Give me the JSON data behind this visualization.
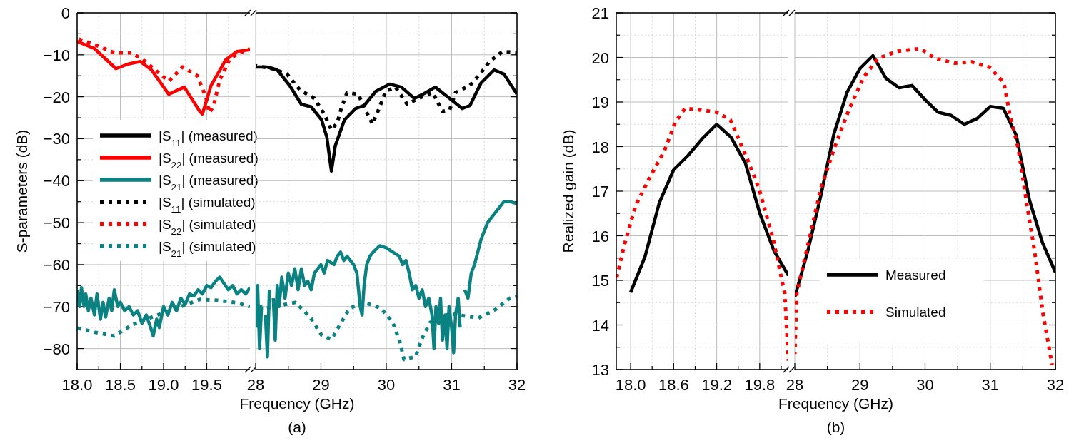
{
  "chart_data": [
    {
      "type": "line",
      "ylabel": "S-parameters (dB)",
      "xlim": [
        18,
        20
      ],
      "ylim": [
        -85,
        0
      ],
      "xticks": [
        {
          "value": 18,
          "label": "18.0"
        },
        {
          "value": 18.25,
          "label": null
        },
        {
          "value": 18.5,
          "label": "18.5"
        },
        {
          "value": 18.75,
          "label": null
        },
        {
          "value": 19,
          "label": "19.0"
        },
        {
          "value": 19.25,
          "label": null
        },
        {
          "value": 19.5,
          "label": "19.5"
        },
        {
          "value": 19.75,
          "label": null
        }
      ],
      "yticks": [
        0,
        {
          "value": -5,
          "label": null
        },
        -10,
        {
          "value": -15,
          "label": null
        },
        -20,
        {
          "value": -25,
          "label": null
        },
        -30,
        {
          "value": -35,
          "label": null
        },
        -40,
        {
          "value": -45,
          "label": null
        },
        -50,
        {
          "value": -55,
          "label": null
        },
        -60,
        {
          "value": -65,
          "label": null
        },
        -70,
        {
          "value": -75,
          "label": null
        },
        -80
      ],
      "grid": true,
      "legend": "center",
      "series": [
        {
          "name": "|S$_{11}$| (measured)",
          "color": "#000000",
          "line_style": "solid"
        },
        {
          "name": "|S$_{22}$| (measured)",
          "color": "#ff0000",
          "line_style": "solid",
          "x": [
            18,
            18.2,
            18.45,
            18.59,
            18.73,
            18.86,
            19.06,
            19.24,
            19.42,
            19.45,
            19.55,
            19.72,
            19.85,
            20
          ],
          "values": [
            -6.8,
            -8.5,
            -13.3,
            -12.2,
            -11.6,
            -13.6,
            -19.4,
            -17.7,
            -23.5,
            -24.1,
            -17.3,
            -11.2,
            -9.2,
            -8.8
          ]
        },
        {
          "name": "|S$_{21}$| (measured)",
          "color": "#0a8282",
          "line_style": "solid",
          "x": [
            18,
            18.03,
            18.05,
            18.08,
            18.1,
            18.13,
            18.16,
            18.2,
            18.23,
            18.27,
            18.3,
            18.33,
            18.37,
            18.4,
            18.43,
            18.47,
            18.5,
            18.55,
            18.6,
            18.65,
            18.7,
            18.75,
            18.8,
            18.85,
            18.88,
            18.92,
            18.95,
            19,
            19.05,
            19.1,
            19.15,
            19.2,
            19.25,
            19.3,
            19.35,
            19.4,
            19.45,
            19.5,
            19.55,
            19.6,
            19.65,
            19.7,
            19.75,
            19.8,
            19.85,
            19.9,
            19.95,
            20
          ],
          "values": [
            -66,
            -70,
            -65.5,
            -70,
            -67,
            -71,
            -68,
            -72,
            -67,
            -73,
            -69,
            -72.5,
            -68,
            -71,
            -66,
            -70,
            -69,
            -71,
            -70,
            -72,
            -71,
            -74,
            -72,
            -75,
            -77,
            -73,
            -75,
            -70,
            -72,
            -69,
            -71,
            -68,
            -69.5,
            -67,
            -67.5,
            -66,
            -67,
            -65,
            -65.5,
            -64,
            -63,
            -64.5,
            -66,
            -65,
            -67,
            -66,
            -67,
            -65.5
          ]
        },
        {
          "name": "|S$_{11}$| (simulated)",
          "color": "#000000",
          "line_style": "dotted"
        },
        {
          "name": "|S$_{22}$| (simulated)",
          "color": "#ff0000",
          "line_style": "dotted",
          "x": [
            18,
            18.23,
            18.43,
            18.63,
            18.79,
            18.96,
            19.06,
            19.22,
            19.39,
            19.49,
            19.53,
            19.58,
            19.65,
            19.77,
            19.88,
            20
          ],
          "values": [
            -6.1,
            -7.8,
            -9.5,
            -9.5,
            -11.6,
            -14.6,
            -16.3,
            -12.9,
            -15,
            -20.1,
            -23.8,
            -22.1,
            -16,
            -10.9,
            -9.5,
            -8.6
          ]
        },
        {
          "name": "|S$_{21}$| (simulated)",
          "color": "#0a8282",
          "line_style": "dotted",
          "x": [
            18,
            18.2,
            18.43,
            18.63,
            18.8,
            19,
            19.2,
            19.42,
            19.62,
            19.85,
            20
          ],
          "values": [
            -75.1,
            -76.1,
            -77,
            -74.4,
            -73,
            -71.5,
            -70,
            -68.3,
            -68.5,
            -69.1,
            -70
          ]
        }
      ]
    },
    {
      "type": "line",
      "xlabel": "Frequency (GHz)",
      "annotations": [
        "(a)"
      ],
      "xlim": [
        28,
        32
      ],
      "ylim": [
        -85,
        0
      ],
      "tick_labels": "x",
      "xticks": [
        28,
        {
          "value": 28.5,
          "label": null
        },
        29,
        {
          "value": 29.5,
          "label": null
        },
        30,
        {
          "value": 30.5,
          "label": null
        },
        31,
        {
          "value": 31.5,
          "label": null
        },
        32
      ],
      "yticks": [
        0,
        {
          "value": -5,
          "label": null
        },
        -10,
        {
          "value": -15,
          "label": null
        },
        -20,
        {
          "value": -25,
          "label": null
        },
        -30,
        {
          "value": -35,
          "label": null
        },
        -40,
        {
          "value": -45,
          "label": null
        },
        -50,
        {
          "value": -55,
          "label": null
        },
        -60,
        {
          "value": -65,
          "label": null
        },
        -70,
        {
          "value": -75,
          "label": null
        },
        -80
      ],
      "grid": true,
      "series": [
        {
          "color": "#000000",
          "line_style": "solid",
          "x": [
            28,
            28.17,
            28.33,
            28.52,
            28.7,
            28.85,
            29.01,
            29.09,
            29.16,
            29.22,
            29.36,
            29.53,
            29.66,
            29.84,
            30.05,
            30.23,
            30.43,
            30.56,
            30.75,
            30.97,
            31.16,
            31.28,
            31.45,
            31.65,
            31.8,
            32
          ],
          "values": [
            -12.9,
            -12.9,
            -13.6,
            -17.3,
            -21.8,
            -22.4,
            -25.5,
            -29.6,
            -37.7,
            -31.6,
            -25.5,
            -22.8,
            -22.1,
            -18.7,
            -17,
            -17.7,
            -20.4,
            -19.4,
            -17.7,
            -20.4,
            -22.8,
            -22.1,
            -16.7,
            -13.6,
            -14.6,
            -19.4
          ]
        },
        {
          "color": "#0a8282",
          "line_style": "solid",
          "x": [
            28,
            28.03,
            28.06,
            28.09,
            28.12,
            28.15,
            28.18,
            28.21,
            28.24,
            28.27,
            28.3,
            28.33,
            28.36,
            28.4,
            28.45,
            28.5,
            28.55,
            28.6,
            28.65,
            28.7,
            28.75,
            28.8,
            28.85,
            28.9,
            29,
            29.05,
            29.1,
            29.2,
            29.25,
            29.3,
            29.35,
            29.4,
            29.45,
            29.5,
            29.55,
            29.6,
            29.63,
            29.66,
            29.7,
            29.75,
            29.8,
            29.9,
            30,
            30.1,
            30.2,
            30.25,
            30.3,
            30.35,
            30.4,
            30.45,
            30.5,
            30.55,
            30.6,
            30.65,
            30.7,
            30.73,
            30.76,
            30.8,
            30.83,
            30.86,
            30.9,
            30.93,
            30.96,
            31,
            31.03,
            31.06,
            31.1,
            31.13,
            31.16,
            31.2,
            31.25,
            31.3,
            31.35,
            31.4,
            31.45,
            31.5,
            31.55,
            31.6,
            31.7,
            31.8,
            31.9,
            32
          ],
          "values": [
            -75,
            -65,
            -80,
            -70,
            null,
            -72,
            -82,
            -66,
            null,
            -68,
            -78,
            -65,
            -70,
            -63,
            -68,
            -62,
            -65,
            -61,
            -66,
            -61,
            -65,
            -64,
            -66,
            -62,
            -60,
            -62,
            -59,
            -60,
            -58,
            -57,
            -59,
            -58,
            -59,
            -60,
            -62,
            -70,
            -72,
            -65,
            -60,
            -58,
            -57,
            -55.5,
            -56,
            -57,
            -58,
            -60,
            -59,
            -62,
            -66,
            -65,
            -68,
            -66,
            -70,
            -68,
            -72,
            -80,
            -70,
            -74,
            -68,
            -78,
            -72,
            -80,
            -70,
            -75,
            -81,
            -72,
            -68,
            -75,
            null,
            -66,
            -68,
            -62,
            -60,
            -57,
            -54,
            -52,
            -50,
            -49,
            -47,
            -45,
            -45,
            -45.5
          ]
        },
        {
          "color": "#000000",
          "line_style": "dotted",
          "x": [
            28,
            28.26,
            28.48,
            28.68,
            28.9,
            29.05,
            29.16,
            29.25,
            29.31,
            29.4,
            29.57,
            29.68,
            29.79,
            29.9,
            29.99,
            30.14,
            30.32,
            30.49,
            30.71,
            30.86,
            30.97,
            31.06,
            31.28,
            31.45,
            31.58,
            31.78,
            32
          ],
          "values": [
            -12.6,
            -13.3,
            -14.6,
            -18.4,
            -20.4,
            -24.1,
            -27.9,
            -26.2,
            -22.8,
            -19,
            -19.4,
            -23.1,
            -26.5,
            -22.4,
            -18.7,
            -17.7,
            -21.8,
            -20.4,
            -19,
            -23.5,
            -23.1,
            -19,
            -17.3,
            -14.3,
            -11.6,
            -9.2,
            -9.5
          ]
        },
        {
          "color": "#0a8282",
          "line_style": "dotted",
          "x": [
            28,
            28.17,
            28.61,
            28.83,
            29.01,
            29.16,
            29.31,
            29.44,
            29.66,
            29.92,
            30.1,
            30.21,
            30.27,
            30.45,
            30.54,
            30.67,
            30.97,
            31.41,
            31.67,
            31.89,
            32
          ],
          "values": [
            -69.7,
            -70.4,
            -69,
            -72.4,
            -76.8,
            -77.8,
            -73.8,
            -70.4,
            -69,
            -70.4,
            -73.8,
            -78.5,
            -82.6,
            -81.9,
            -77.8,
            -73.8,
            -71.7,
            -72.7,
            -70.7,
            -68,
            -67.6
          ]
        }
      ]
    },
    {
      "type": "line",
      "ylabel": "Realized gain (dB)",
      "xlim": [
        17.8,
        20.2
      ],
      "ylim": [
        13,
        21
      ],
      "xticks": [
        {
          "value": 18,
          "label": "18.0"
        },
        {
          "value": 18.3,
          "label": null
        },
        {
          "value": 18.6,
          "label": "18.6"
        },
        {
          "value": 18.9,
          "label": null
        },
        {
          "value": 19.2,
          "label": "19.2"
        },
        {
          "value": 19.5,
          "label": null
        },
        {
          "value": 19.8,
          "label": "19.8"
        },
        {
          "value": 20.1,
          "label": null
        }
      ],
      "yticks": [
        13,
        {
          "value": 13.5,
          "label": null
        },
        14,
        {
          "value": 14.5,
          "label": null
        },
        15,
        {
          "value": 15.5,
          "label": null
        },
        16,
        {
          "value": 16.5,
          "label": null
        },
        17,
        {
          "value": 17.5,
          "label": null
        },
        18,
        {
          "value": 18.5,
          "label": null
        },
        19,
        {
          "value": 19.5,
          "label": null
        },
        20,
        {
          "value": 20.5,
          "label": null
        },
        21
      ],
      "grid": true,
      "series": [
        {
          "color": "#000000",
          "line_style": "solid",
          "x": [
            18,
            18.2,
            18.4,
            18.6,
            18.8,
            19,
            19.2,
            19.4,
            19.6,
            19.8,
            20,
            20.2
          ],
          "values": [
            14.73,
            15.53,
            16.74,
            17.48,
            17.8,
            18.18,
            18.5,
            18.21,
            17.63,
            16.51,
            15.66,
            15.11
          ]
        },
        {
          "color": "#ff0000",
          "line_style": "dotted",
          "x": [
            17.8,
            17.91,
            18.07,
            18.27,
            18.47,
            18.62,
            18.76,
            18.98,
            19.2,
            19.39,
            19.6,
            19.79,
            19.99,
            20.15,
            20.2
          ],
          "values": [
            15.02,
            15.78,
            16.68,
            17.32,
            17.9,
            18.54,
            18.86,
            18.82,
            18.77,
            18.6,
            17.83,
            17.06,
            15.91,
            14.7,
            13.2
          ]
        }
      ]
    },
    {
      "type": "line",
      "xlabel": "Frequency (GHz)",
      "annotations": [
        "(b)"
      ],
      "xlim": [
        28,
        32
      ],
      "ylim": [
        13,
        21
      ],
      "tick_labels": "x",
      "xticks": [
        28,
        {
          "value": 28.5,
          "label": null
        },
        29,
        {
          "value": 29.5,
          "label": null
        },
        30,
        {
          "value": 30.5,
          "label": null
        },
        31,
        {
          "value": 31.5,
          "label": null
        },
        32
      ],
      "yticks": [
        13,
        {
          "value": 13.5,
          "label": null
        },
        14,
        {
          "value": 14.5,
          "label": null
        },
        15,
        {
          "value": 15.5,
          "label": null
        },
        16,
        {
          "value": 16.5,
          "label": null
        },
        17,
        {
          "value": 17.5,
          "label": null
        },
        18,
        {
          "value": 18.5,
          "label": null
        },
        19,
        {
          "value": 19.5,
          "label": null
        },
        20,
        {
          "value": 20.5,
          "label": null
        },
        21
      ],
      "grid": true,
      "legend": "bottom",
      "series": [
        {
          "name": "Measured",
          "color": "#000000",
          "line_style": "solid",
          "x": [
            28,
            28.2,
            28.4,
            28.6,
            28.8,
            29,
            29.2,
            29.4,
            29.6,
            29.8,
            30,
            30.2,
            30.4,
            30.6,
            30.8,
            31,
            31.2,
            31.4,
            31.6,
            31.8,
            32
          ],
          "values": [
            14.63,
            15.66,
            16.9,
            18.28,
            19.21,
            19.75,
            20.04,
            19.53,
            19.32,
            19.37,
            19.05,
            18.77,
            18.7,
            18.5,
            18.63,
            18.9,
            18.86,
            18.25,
            16.81,
            15.85,
            15.18
          ]
        },
        {
          "name": "Simulated",
          "color": "#ff0000",
          "line_style": "dotted",
          "x": [
            28,
            28.03,
            28.18,
            28.4,
            28.62,
            28.84,
            29.06,
            29.28,
            29.58,
            29.93,
            30.15,
            30.46,
            30.72,
            30.99,
            31.21,
            31.3,
            31.43,
            31.55,
            31.68,
            31.81,
            31.95
          ],
          "values": [
            13.35,
            14.7,
            15.66,
            17.06,
            18.02,
            18.86,
            19.56,
            19.98,
            20.14,
            20.2,
            19.98,
            19.87,
            19.9,
            19.78,
            19.43,
            18.72,
            17.96,
            16.81,
            15.66,
            14.25,
            13.1
          ]
        }
      ]
    }
  ]
}
